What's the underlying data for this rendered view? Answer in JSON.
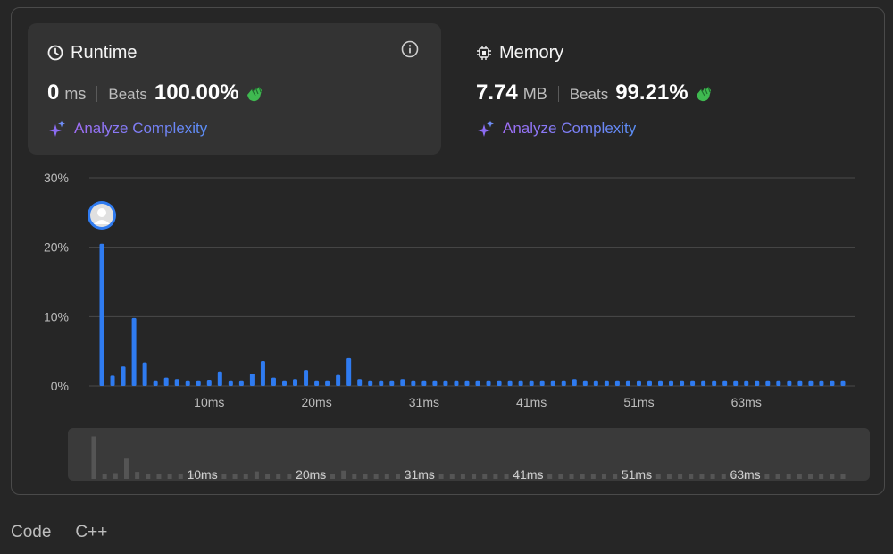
{
  "runtime": {
    "title": "Runtime",
    "value": "0",
    "unit": "ms",
    "beats_label": "Beats",
    "beats_pct": "100.00%",
    "analyze_label": "Analyze Complexity"
  },
  "memory": {
    "title": "Memory",
    "value": "7.74",
    "unit": "MB",
    "beats_label": "Beats",
    "beats_pct": "99.21%",
    "analyze_label": "Analyze Complexity"
  },
  "footer": {
    "label": "Code",
    "language": "C++"
  },
  "colors": {
    "bar": "#2f7bf0",
    "mini_bar": "#555555",
    "accent_purple": "#a06ef6",
    "clap_green": "#3fb950"
  },
  "icons": {
    "runtime": "clock-icon",
    "memory": "chip-icon",
    "info": "info-icon",
    "analyze": "sparkle-icon",
    "beats": "clap-icon",
    "marker": "avatar-icon"
  },
  "chart_data": {
    "type": "bar",
    "y_ticks": [
      "30%",
      "20%",
      "10%",
      "0%"
    ],
    "ylim": [
      0,
      30
    ],
    "x_tick_labels": [
      "10ms",
      "20ms",
      "31ms",
      "41ms",
      "51ms",
      "63ms"
    ],
    "x_tick_indices": [
      10,
      20,
      30,
      40,
      50,
      60
    ],
    "values": [
      20.5,
      1.5,
      2.8,
      9.8,
      3.4,
      0.8,
      1.2,
      1.0,
      0.8,
      0.8,
      0.9,
      2.1,
      0.8,
      0.8,
      1.8,
      3.6,
      1.2,
      0.8,
      1.0,
      2.3,
      0.8,
      0.8,
      1.6,
      4.0,
      1.0,
      0.8,
      0.8,
      0.8,
      1.0,
      0.8,
      0.8,
      0.8,
      0.8,
      0.8,
      0.8,
      0.8,
      0.8,
      0.8,
      0.8,
      0.8,
      0.8,
      0.8,
      0.8,
      0.8,
      1.0,
      0.8,
      0.8,
      0.8,
      0.8,
      0.8,
      0.8,
      0.8,
      0.8,
      0.8,
      0.8,
      0.8,
      0.8,
      0.8,
      0.8,
      0.8,
      0.8,
      0.8,
      0.8,
      0.8,
      0.8,
      0.8,
      0.8,
      0.8,
      0.8,
      0.8
    ],
    "marker_index": 0,
    "grid": true
  }
}
